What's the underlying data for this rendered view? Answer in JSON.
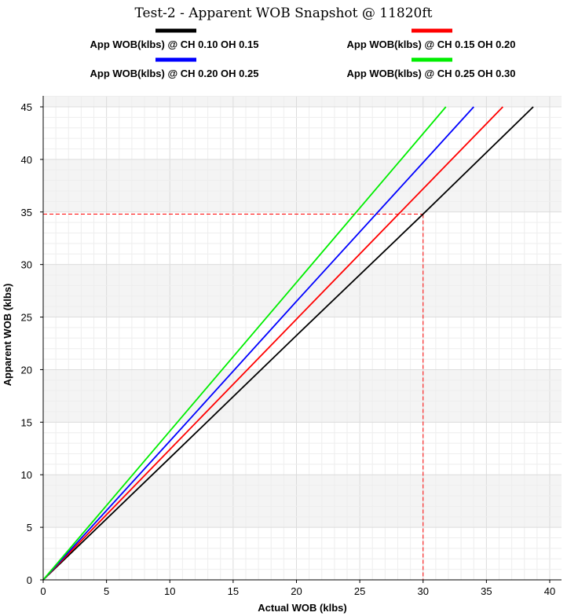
{
  "chart_data": {
    "type": "line",
    "title": "Test-2 - Apparent WOB Snapshot @ 11820ft",
    "xlabel": "Actual WOB (klbs)",
    "ylabel": "Apparent WOB (klbs)",
    "xlim": [
      0,
      40
    ],
    "ylim": [
      0,
      45
    ],
    "xticks": [
      0,
      5,
      10,
      15,
      20,
      25,
      30,
      35,
      40
    ],
    "yticks": [
      0,
      5,
      10,
      15,
      20,
      25,
      30,
      35,
      40,
      45
    ],
    "grid": true,
    "legend_position": "top",
    "series": [
      {
        "name": "App WOB(klbs) @ CH 0.10 OH 0.15",
        "color": "#000000",
        "x": [
          0,
          10,
          20,
          30,
          38.7
        ],
        "y": [
          0,
          11.6,
          23.25,
          34.8,
          45
        ]
      },
      {
        "name": "App WOB(klbs) @ CH 0.15 OH 0.20",
        "color": "#ff0000",
        "x": [
          0,
          10,
          20,
          30,
          36.3
        ],
        "y": [
          0,
          12.4,
          24.8,
          37.2,
          45
        ]
      },
      {
        "name": "App WOB(klbs) @ CH 0.20 OH 0.25",
        "color": "#0000ff",
        "x": [
          0,
          10,
          20,
          30,
          34.0
        ],
        "y": [
          0,
          13.2,
          26.5,
          39.7,
          45
        ]
      },
      {
        "name": "App WOB(klbs) @ CH 0.25 OH 0.30",
        "color": "#00ee00",
        "x": [
          0,
          10,
          20,
          30,
          31.8
        ],
        "y": [
          0,
          14.15,
          28.3,
          42.45,
          45
        ]
      }
    ],
    "reference_lines": {
      "color": "#ff0000",
      "x": 30,
      "y": 34.8
    }
  }
}
